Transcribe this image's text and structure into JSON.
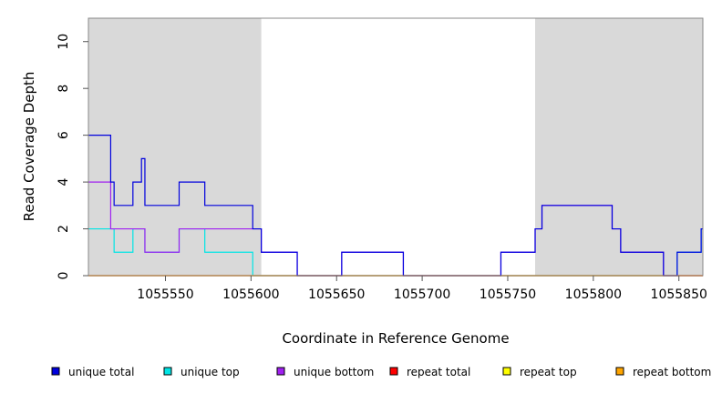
{
  "chart_data": {
    "type": "line",
    "step": true,
    "title": "",
    "xlabel": "Coordinate in Reference Genome",
    "ylabel": "Read Coverage Depth",
    "xlim": [
      1055505,
      1055864
    ],
    "ylim": [
      0,
      11
    ],
    "x_ticks": [
      1055550,
      1055600,
      1055650,
      1055700,
      1055750,
      1055800,
      1055850
    ],
    "y_ticks": [
      0,
      2,
      4,
      6,
      8,
      10
    ],
    "shaded_regions": [
      {
        "x0": 1055505,
        "x1": 1055606,
        "color": "#d9d9d9"
      },
      {
        "x0": 1055766,
        "x1": 1055864,
        "color": "#d9d9d9"
      }
    ],
    "series": [
      {
        "name": "unique top",
        "color": "#00e5e5",
        "points": [
          [
            1055505,
            2
          ],
          [
            1055520,
            1
          ],
          [
            1055531,
            2
          ],
          [
            1055538,
            1
          ],
          [
            1055558,
            2
          ],
          [
            1055573,
            1
          ],
          [
            1055601,
            0
          ],
          [
            1055849,
            1
          ],
          [
            1055863,
            2
          ]
        ]
      },
      {
        "name": "unique bottom",
        "color": "#a020f0",
        "points": [
          [
            1055505,
            4
          ],
          [
            1055518,
            2
          ],
          [
            1055538,
            1
          ],
          [
            1055558,
            2
          ],
          [
            1055606,
            1
          ],
          [
            1055627,
            0
          ],
          [
            1055653,
            1
          ],
          [
            1055689,
            0
          ],
          [
            1055746,
            1
          ],
          [
            1055766,
            2
          ],
          [
            1055770,
            3
          ],
          [
            1055811,
            2
          ],
          [
            1055816,
            1
          ],
          [
            1055841,
            0
          ],
          [
            1055864,
            0
          ]
        ]
      },
      {
        "name": "repeat total",
        "color": "#ff0000",
        "points": [
          [
            1055505,
            0
          ],
          [
            1055864,
            0
          ]
        ]
      },
      {
        "name": "repeat top",
        "color": "#ffd700",
        "points": [
          [
            1055505,
            0
          ],
          [
            1055864,
            0
          ]
        ]
      },
      {
        "name": "repeat bottom",
        "color": "#ff9900",
        "points": [
          [
            1055505,
            0
          ],
          [
            1055864,
            0
          ]
        ]
      },
      {
        "name": "unique total",
        "color": "#0000dd",
        "points": [
          [
            1055505,
            6
          ],
          [
            1055518,
            4
          ],
          [
            1055520,
            3
          ],
          [
            1055531,
            4
          ],
          [
            1055536,
            5
          ],
          [
            1055538,
            3
          ],
          [
            1055558,
            4
          ],
          [
            1055573,
            3
          ],
          [
            1055601,
            2
          ],
          [
            1055606,
            1
          ],
          [
            1055627,
            0
          ],
          [
            1055653,
            1
          ],
          [
            1055689,
            0
          ],
          [
            1055746,
            1
          ],
          [
            1055766,
            2
          ],
          [
            1055770,
            3
          ],
          [
            1055811,
            2
          ],
          [
            1055816,
            1
          ],
          [
            1055841,
            0
          ],
          [
            1055849,
            1
          ],
          [
            1055863,
            2
          ]
        ]
      }
    ],
    "legend": {
      "placement": "bottom",
      "entries": [
        {
          "label": "unique total",
          "color": "#0000dd"
        },
        {
          "label": "unique top",
          "color": "#00e5e5"
        },
        {
          "label": "unique bottom",
          "color": "#a020f0"
        },
        {
          "label": "repeat total",
          "color": "#ff0000"
        },
        {
          "label": "repeat top",
          "color": "#ffff00"
        },
        {
          "label": "repeat bottom",
          "color": "#ffa500"
        }
      ]
    }
  }
}
